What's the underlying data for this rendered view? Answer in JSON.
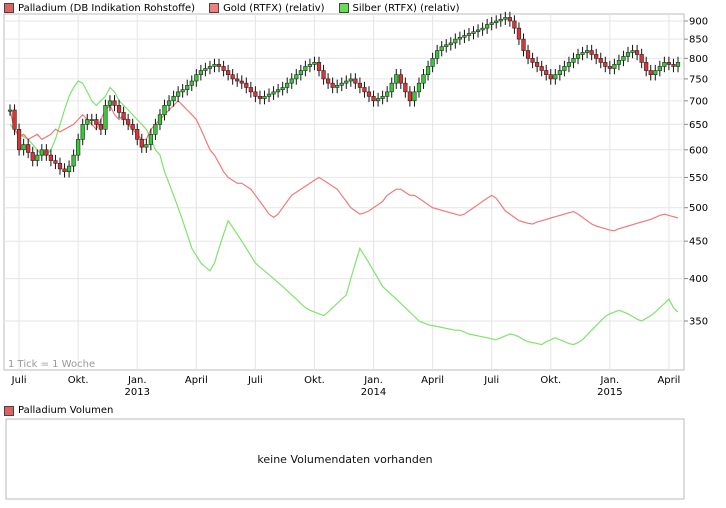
{
  "chart_data": {
    "type": "candlestick-with-lines",
    "legend": [
      {
        "label": "Palladium (DB Indikation Rohstoffe)",
        "color": "#e06060"
      },
      {
        "label": "Gold (RTFX) (relativ)",
        "color": "#f08080"
      },
      {
        "label": "Silber (RTFX) (relativ)",
        "color": "#66dd55"
      }
    ],
    "y_axis": {
      "ticks": [
        350,
        400,
        450,
        500,
        550,
        600,
        650,
        700,
        750,
        800,
        850,
        900
      ],
      "range": [
        300,
        920
      ],
      "scale": "log"
    },
    "x_axis": {
      "month_labels": [
        "Juli",
        "Okt.",
        "Jan.",
        "April",
        "Juli",
        "Okt.",
        "Jan.",
        "April",
        "Juli",
        "Okt.",
        "Jan.",
        "April"
      ],
      "month_week_index": [
        2,
        15,
        28,
        41,
        54,
        67,
        80,
        93,
        106,
        119,
        132,
        145
      ],
      "year_labels": [
        "2013",
        "2014",
        "2015"
      ],
      "year_week_index": [
        28,
        80,
        132
      ]
    },
    "tick_note": "1 Tick = 1 Woche",
    "palladium_close": [
      680,
      640,
      600,
      610,
      595,
      580,
      590,
      600,
      590,
      580,
      575,
      565,
      560,
      570,
      590,
      620,
      650,
      660,
      660,
      650,
      640,
      690,
      700,
      690,
      675,
      660,
      650,
      640,
      620,
      605,
      610,
      630,
      650,
      670,
      690,
      700,
      710,
      720,
      725,
      735,
      745,
      760,
      770,
      775,
      780,
      785,
      780,
      770,
      760,
      750,
      745,
      740,
      730,
      720,
      710,
      705,
      710,
      715,
      720,
      725,
      730,
      740,
      750,
      760,
      770,
      780,
      785,
      790,
      770,
      750,
      740,
      730,
      735,
      740,
      745,
      750,
      740,
      730,
      720,
      710,
      700,
      705,
      710,
      720,
      740,
      760,
      740,
      720,
      700,
      720,
      740,
      760,
      780,
      800,
      820,
      830,
      835,
      840,
      850,
      855,
      860,
      865,
      870,
      875,
      880,
      890,
      895,
      900,
      905,
      910,
      900,
      880,
      850,
      820,
      800,
      790,
      780,
      770,
      760,
      750,
      760,
      770,
      780,
      790,
      800,
      810,
      815,
      820,
      810,
      800,
      790,
      780,
      775,
      785,
      795,
      805,
      815,
      820,
      810,
      790,
      770,
      760,
      770,
      780,
      790,
      785,
      780,
      790
    ],
    "gold_relative": [
      680,
      640,
      625,
      630,
      620,
      625,
      630,
      620,
      625,
      630,
      640,
      635,
      640,
      645,
      650,
      660,
      670,
      660,
      650,
      640,
      660,
      680,
      690,
      670,
      660,
      670,
      650,
      640,
      630,
      620,
      620,
      640,
      650,
      660,
      670,
      680,
      690,
      700,
      690,
      680,
      670,
      660,
      640,
      620,
      600,
      590,
      575,
      560,
      550,
      545,
      540,
      540,
      535,
      530,
      520,
      510,
      500,
      490,
      485,
      490,
      500,
      510,
      520,
      525,
      530,
      535,
      540,
      545,
      550,
      545,
      540,
      535,
      530,
      520,
      510,
      500,
      495,
      490,
      492,
      495,
      500,
      505,
      510,
      520,
      525,
      530,
      530,
      525,
      520,
      520,
      515,
      510,
      505,
      500,
      498,
      496,
      494,
      492,
      490,
      488,
      490,
      495,
      500,
      505,
      510,
      515,
      520,
      515,
      505,
      495,
      490,
      485,
      480,
      478,
      476,
      475,
      478,
      480,
      482,
      484,
      486,
      488,
      490,
      492,
      494,
      490,
      485,
      480,
      475,
      472,
      470,
      468,
      466,
      465,
      468,
      470,
      472,
      474,
      476,
      478,
      480,
      482,
      485,
      488,
      490,
      488,
      486,
      484
    ],
    "silver_relative": [
      650,
      640,
      630,
      625,
      620,
      610,
      600,
      590,
      590,
      600,
      620,
      650,
      680,
      710,
      730,
      745,
      740,
      720,
      700,
      690,
      700,
      710,
      730,
      720,
      700,
      690,
      680,
      670,
      660,
      650,
      640,
      620,
      600,
      590,
      560,
      540,
      520,
      500,
      480,
      460,
      440,
      430,
      420,
      415,
      410,
      420,
      440,
      460,
      480,
      470,
      460,
      450,
      440,
      430,
      420,
      415,
      410,
      405,
      400,
      395,
      390,
      385,
      380,
      375,
      370,
      365,
      362,
      360,
      358,
      356,
      360,
      365,
      370,
      375,
      380,
      400,
      420,
      440,
      430,
      420,
      410,
      400,
      390,
      385,
      380,
      375,
      370,
      365,
      360,
      355,
      350,
      348,
      346,
      345,
      344,
      343,
      342,
      341,
      340,
      340,
      338,
      336,
      335,
      334,
      333,
      332,
      331,
      330,
      332,
      334,
      336,
      335,
      333,
      330,
      328,
      327,
      326,
      325,
      328,
      330,
      332,
      330,
      328,
      326,
      325,
      327,
      330,
      335,
      340,
      345,
      350,
      355,
      358,
      360,
      362,
      360,
      358,
      355,
      352,
      350,
      353,
      356,
      360,
      365,
      370,
      375,
      365,
      360
    ]
  },
  "volume": {
    "legend_label": "Palladium Volumen",
    "legend_color": "#e06060",
    "message": "keine Volumendaten vorhanden"
  }
}
